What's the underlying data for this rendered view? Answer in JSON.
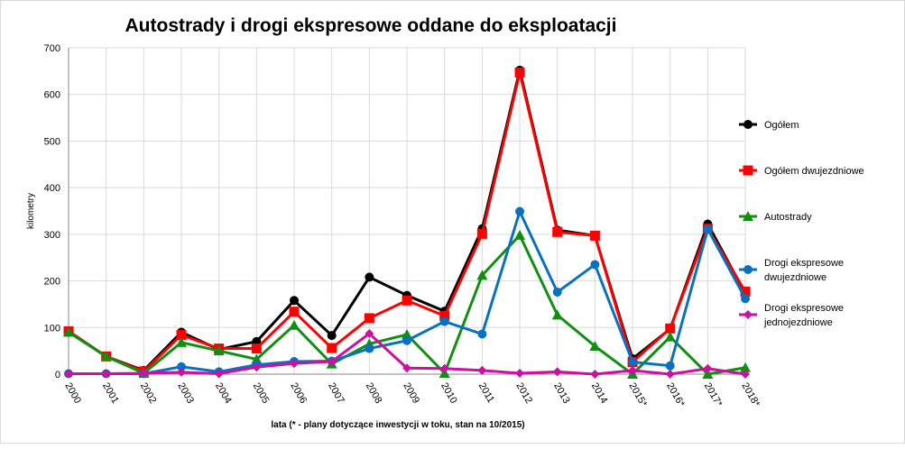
{
  "chart_data": {
    "type": "line",
    "title": "Autostrady i drogi ekspresowe oddane do eksploatacji",
    "xlabel": "lata (* - plany dotyczące inwestycji w toku, stan na 10/2015)",
    "ylabel": "kilometry",
    "ylim": [
      0,
      700
    ],
    "yticks": [
      "0",
      "100",
      "200",
      "300",
      "400",
      "500",
      "600",
      "700"
    ],
    "grid": true,
    "legend": "right",
    "categories": [
      "2000",
      "2001",
      "2002",
      "2003",
      "2004",
      "2005",
      "2006",
      "2007",
      "2008",
      "2009",
      "2010",
      "2011",
      "2012",
      "2013",
      "2014",
      "2015*",
      "2016*",
      "2017*",
      "2018*"
    ],
    "series": [
      {
        "name": "Ogółem",
        "color": "#000000",
        "marker": "circle",
        "values": [
          92,
          38,
          8,
          90,
          53,
          70,
          158,
          83,
          208,
          169,
          135,
          312,
          652,
          309,
          297,
          33,
          97,
          322,
          173
        ]
      },
      {
        "name": "Ogółem dwujezdniowe",
        "color": "#ff0000",
        "marker": "square",
        "values": [
          92,
          38,
          6,
          84,
          55,
          55,
          134,
          56,
          120,
          158,
          125,
          301,
          647,
          305,
          297,
          26,
          98,
          312,
          177
        ]
      },
      {
        "name": "Autostrady",
        "color": "#109010",
        "marker": "triangle",
        "values": [
          90,
          38,
          2,
          68,
          50,
          32,
          105,
          22,
          65,
          85,
          2,
          212,
          298,
          127,
          60,
          0,
          80,
          0,
          14
        ]
      },
      {
        "name": "Drogi ekspresowe dwujezdniowe",
        "name_lines": [
          "Drogi ekspresowe",
          "dwujezdniowe"
        ],
        "color": "#0a70c0",
        "marker": "circle",
        "values": [
          1,
          1,
          1,
          16,
          5,
          20,
          27,
          28,
          55,
          72,
          113,
          86,
          349,
          176,
          235,
          26,
          18,
          311,
          162
        ]
      },
      {
        "name": "Drogi ekspresowe jednojezdniowe",
        "name_lines": [
          "Drogi ekspresowe",
          "jednojezdniowe"
        ],
        "color": "#cc10a0",
        "marker": "diamond",
        "values": [
          1,
          1,
          2,
          4,
          1,
          15,
          23,
          27,
          87,
          13,
          12,
          8,
          2,
          5,
          0,
          8,
          0,
          12,
          0
        ]
      }
    ]
  }
}
